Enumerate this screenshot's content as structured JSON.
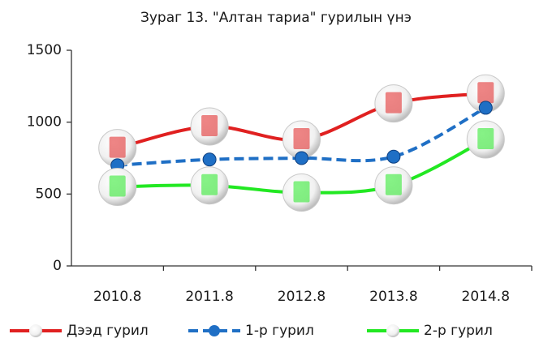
{
  "chart_data": {
    "type": "line",
    "title": "Зураг 13. \"Алтан тариа\" гурилын үнэ",
    "categories": [
      "2010.8",
      "2011.8",
      "2012.8",
      "2013.8",
      "2014.8"
    ],
    "series": [
      {
        "name": "Дээд гурил",
        "color": "#e02020",
        "dashed": false,
        "values": [
          820,
          970,
          880,
          1130,
          1200
        ]
      },
      {
        "name": "1-р гурил",
        "color": "#1f6fc5",
        "dashed": true,
        "values": [
          700,
          740,
          750,
          760,
          1100
        ]
      },
      {
        "name": "2-р гурил",
        "color": "#22e822",
        "dashed": false,
        "values": [
          550,
          560,
          510,
          560,
          880
        ]
      }
    ],
    "ylim": [
      0,
      1500
    ],
    "yticks": [
      0,
      500,
      1000,
      1500
    ],
    "grid": false,
    "legend": "bottom"
  }
}
